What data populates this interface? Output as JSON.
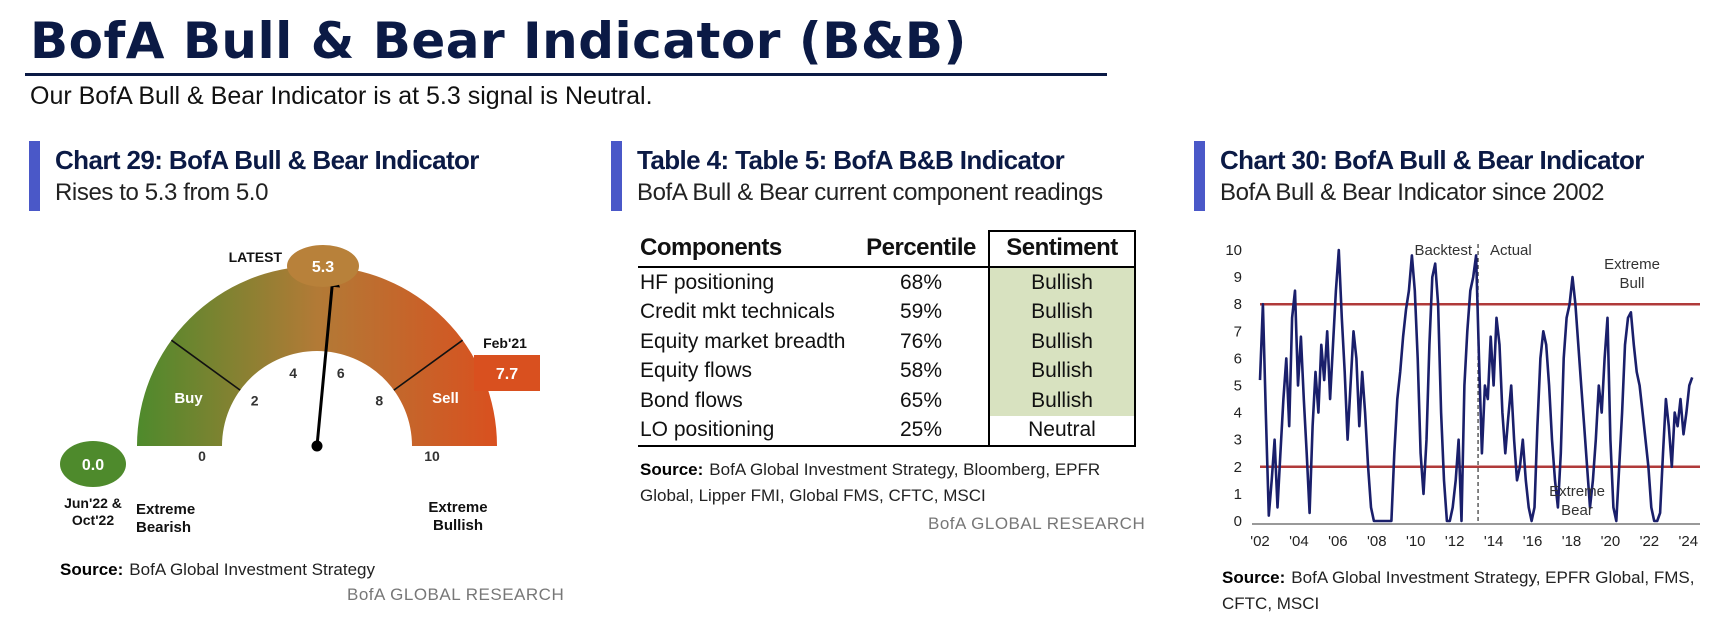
{
  "header": {
    "title": "BofA Bull & Bear Indicator (B&B)",
    "subtitle": "Our BofA Bull & Bear Indicator is at 5.3 signal is Neutral."
  },
  "panels": {
    "gauge": {
      "title": "Chart 29: BofA Bull & Bear Indicator",
      "subtitle": "Rises to 5.3 from 5.0",
      "source_label": "Source:",
      "source_text": "BofA Global Investment Strategy",
      "brand": "BofA GLOBAL RESEARCH"
    },
    "table": {
      "title": "Table 4: Table 5: BofA B&B Indicator",
      "subtitle": "BofA Bull & Bear current component readings",
      "source_label": "Source:",
      "source_line1": "BofA Global Investment Strategy, Bloomberg, EPFR",
      "source_line2": "Global, Lipper FMI, Global FMS, CFTC, MSCI",
      "brand": "BofA GLOBAL RESEARCH"
    },
    "history": {
      "title": "Chart 30: BofA Bull & Bear Indicator",
      "subtitle": "BofA Bull & Bear Indicator since 2002",
      "source_label": "Source:",
      "source_line1": "BofA Global Investment Strategy, EPFR Global, FMS,",
      "source_line2": "CFTC, MSCI"
    }
  },
  "chart_data": [
    {
      "type": "gauge",
      "min": 0,
      "max": 10,
      "value": 5.3,
      "ticks": [
        "0",
        "2",
        "4",
        "6",
        "8",
        "10"
      ],
      "latest_label": "LATEST",
      "latest_value": "5.3",
      "low_marker": {
        "value": "0.0",
        "label_line1": "Jun'22 &",
        "label_line2": "Oct'22"
      },
      "high_marker": {
        "label": "Feb'21",
        "value": "7.7"
      },
      "zones": {
        "buy": "Buy",
        "sell": "Sell",
        "buy_threshold": 2,
        "sell_threshold": 8
      },
      "extreme_bearish": [
        "Extreme",
        "Bearish"
      ],
      "extreme_bullish": [
        "Extreme",
        "Bullish"
      ],
      "colors": {
        "bull_green": "#4e8a2c",
        "bear_orange": "#d9501f",
        "gold": "#b8813a"
      }
    },
    {
      "type": "table",
      "columns": [
        "Components",
        "Percentile",
        "Sentiment"
      ],
      "rows": [
        {
          "component": "HF positioning",
          "percentile": "68%",
          "sentiment": "Bullish"
        },
        {
          "component": "Credit mkt technicals",
          "percentile": "59%",
          "sentiment": "Bullish"
        },
        {
          "component": "Equity market breadth",
          "percentile": "76%",
          "sentiment": "Bullish"
        },
        {
          "component": "Equity flows",
          "percentile": "58%",
          "sentiment": "Bullish"
        },
        {
          "component": "Bond flows",
          "percentile": "65%",
          "sentiment": "Bullish"
        },
        {
          "component": "LO positioning",
          "percentile": "25%",
          "sentiment": "Neutral"
        }
      ],
      "colors": {
        "bullish_fill": "#d8e2c0"
      }
    },
    {
      "type": "line",
      "ylim": [
        0,
        10
      ],
      "y_ticks": [
        0,
        1,
        2,
        3,
        4,
        5,
        6,
        7,
        8,
        9,
        10
      ],
      "xlim": [
        2002,
        2024.6
      ],
      "x_ticks": [
        {
          "year": 2002,
          "label": "'02"
        },
        {
          "year": 2004,
          "label": "'04"
        },
        {
          "year": 2006,
          "label": "'06"
        },
        {
          "year": 2008,
          "label": "'08"
        },
        {
          "year": 2010,
          "label": "'10"
        },
        {
          "year": 2012,
          "label": "'12"
        },
        {
          "year": 2014,
          "label": "'14"
        },
        {
          "year": 2016,
          "label": "'16"
        },
        {
          "year": 2018,
          "label": "'18"
        },
        {
          "year": 2020,
          "label": "'20"
        },
        {
          "year": 2022,
          "label": "'22"
        },
        {
          "year": 2024,
          "label": "'24"
        }
      ],
      "bull_threshold": 8,
      "bear_threshold": 2,
      "divider_year": 2013.2,
      "labels": {
        "backtest": "Backtest",
        "actual": "Actual",
        "extreme_bull": [
          "Extreme",
          "Bull"
        ],
        "extreme_bear": [
          "Extreme",
          "Bear"
        ]
      },
      "colors": {
        "line": "#1a1f6b",
        "threshold": "#b03a3a"
      },
      "series": [
        {
          "x": [
            2002.0,
            2002.15,
            2002.3,
            2002.45,
            2002.6,
            2002.75,
            2002.9,
            2003.05,
            2003.2,
            2003.35,
            2003.5,
            2003.65,
            2003.8,
            2003.95,
            2004.1,
            2004.25,
            2004.4,
            2004.55,
            2004.7,
            2004.85,
            2005.0,
            2005.15,
            2005.3,
            2005.45,
            2005.6,
            2005.75,
            2005.9,
            2006.05,
            2006.2,
            2006.35,
            2006.5,
            2006.65,
            2006.8,
            2006.95,
            2007.1,
            2007.25,
            2007.4,
            2007.55,
            2007.7,
            2007.85,
            2008.0,
            2008.15,
            2008.3,
            2008.45,
            2008.6,
            2008.75,
            2008.9,
            2009.05,
            2009.2,
            2009.35,
            2009.5,
            2009.65,
            2009.8,
            2009.95,
            2010.1,
            2010.25,
            2010.4,
            2010.55,
            2010.7,
            2010.85,
            2011.0,
            2011.15,
            2011.3,
            2011.45,
            2011.6,
            2011.75,
            2011.9,
            2012.05,
            2012.2,
            2012.35,
            2012.5,
            2012.65,
            2012.8,
            2012.95,
            2013.1,
            2013.25,
            2013.4,
            2013.55,
            2013.7,
            2013.85,
            2014.0,
            2014.15,
            2014.3,
            2014.45,
            2014.6,
            2014.75,
            2014.9,
            2015.05,
            2015.2,
            2015.35,
            2015.5,
            2015.65,
            2015.8,
            2015.95,
            2016.1,
            2016.25,
            2016.4,
            2016.55,
            2016.7,
            2016.85,
            2017.0,
            2017.15,
            2017.3,
            2017.45,
            2017.6,
            2017.75,
            2017.9,
            2018.05,
            2018.2,
            2018.35,
            2018.5,
            2018.65,
            2018.8,
            2018.95,
            2019.1,
            2019.25,
            2019.4,
            2019.55,
            2019.7,
            2019.85,
            2020.0,
            2020.15,
            2020.3,
            2020.45,
            2020.6,
            2020.75,
            2020.9,
            2021.05,
            2021.2,
            2021.35,
            2021.5,
            2021.65,
            2021.8,
            2021.95,
            2022.1,
            2022.25,
            2022.4,
            2022.55,
            2022.7,
            2022.85,
            2023.0,
            2023.15,
            2023.3,
            2023.45,
            2023.6,
            2023.75,
            2023.9,
            2024.05,
            2024.2
          ],
          "y": [
            5.2,
            8.0,
            4.0,
            0.2,
            1.5,
            3.0,
            0.5,
            2.5,
            4.5,
            6.0,
            3.5,
            7.5,
            8.5,
            5.0,
            6.8,
            4.5,
            2.5,
            0.3,
            3.5,
            5.5,
            4.0,
            6.5,
            5.2,
            7.0,
            4.5,
            6.5,
            8.5,
            10.0,
            7.5,
            5.5,
            3.0,
            5.0,
            7.0,
            6.0,
            3.5,
            5.5,
            4.0,
            2.0,
            0.5,
            0.0,
            0.0,
            0.0,
            0.0,
            0.0,
            0.0,
            0.0,
            2.5,
            4.5,
            5.5,
            6.8,
            7.8,
            8.5,
            9.8,
            8.5,
            6.0,
            2.5,
            1.0,
            3.0,
            6.5,
            9.0,
            9.5,
            8.0,
            4.0,
            1.5,
            0.0,
            0.0,
            0.5,
            1.5,
            3.0,
            0.0,
            5.0,
            7.0,
            8.5,
            9.0,
            9.8,
            6.0,
            2.5,
            5.0,
            4.5,
            6.8,
            5.0,
            7.5,
            6.5,
            4.0,
            2.5,
            3.8,
            5.0,
            3.0,
            1.5,
            2.0,
            3.0,
            1.5,
            0.5,
            0.0,
            0.5,
            3.5,
            6.0,
            7.0,
            6.5,
            5.0,
            3.0,
            1.5,
            0.5,
            2.5,
            6.0,
            7.5,
            8.0,
            9.0,
            8.0,
            6.5,
            5.0,
            3.5,
            2.0,
            0.5,
            1.5,
            3.0,
            5.0,
            4.0,
            6.0,
            7.5,
            3.0,
            0.5,
            0.0,
            2.0,
            4.0,
            6.5,
            7.5,
            7.7,
            6.5,
            5.5,
            5.0,
            4.0,
            3.0,
            2.0,
            0.5,
            0.0,
            0.0,
            0.3,
            2.5,
            4.5,
            3.5,
            2.0,
            4.0,
            3.5,
            4.5,
            3.2,
            4.0,
            5.0,
            5.3
          ]
        }
      ]
    }
  ]
}
